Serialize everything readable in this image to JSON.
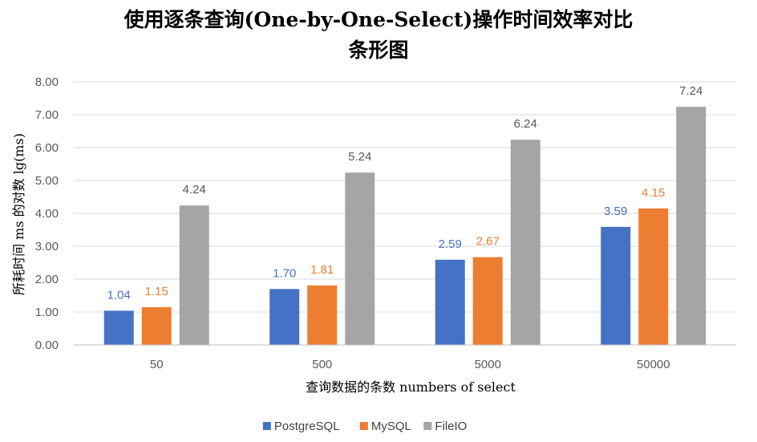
{
  "chart_data": {
    "type": "bar",
    "title_lines": [
      "使用逐条查询(One-by-One-Select)操作时间效率对比",
      "条形图"
    ],
    "xlabel": "查询数据的条数 numbers of select",
    "ylabel": "所耗时间 ms 的对数 lg(ms)",
    "categories": [
      "50",
      "500",
      "5000",
      "50000"
    ],
    "ylim": [
      0,
      8
    ],
    "y_ticks": [
      "0.00",
      "1.00",
      "2.00",
      "3.00",
      "4.00",
      "5.00",
      "6.00",
      "7.00",
      "8.00"
    ],
    "grid": true,
    "legend_position": "bottom",
    "series": [
      {
        "name": "PostgreSQL",
        "color": "#4472C4",
        "values": [
          1.04,
          1.7,
          2.59,
          3.59
        ],
        "labels": [
          "1.04",
          "1.70",
          "2.59",
          "3.59"
        ]
      },
      {
        "name": "MySQL",
        "color": "#ED7D31",
        "values": [
          1.15,
          1.81,
          2.67,
          4.15
        ],
        "labels": [
          "1.15",
          "1.81",
          "2.67",
          "4.15"
        ]
      },
      {
        "name": "FileIO",
        "color": "#A5A5A5",
        "values": [
          4.24,
          5.24,
          6.24,
          7.24
        ],
        "labels": [
          "4.24",
          "5.24",
          "6.24",
          "7.24"
        ]
      }
    ],
    "colors": {
      "grid": "#D9D9D9",
      "axis": "#BFBFBF"
    }
  }
}
